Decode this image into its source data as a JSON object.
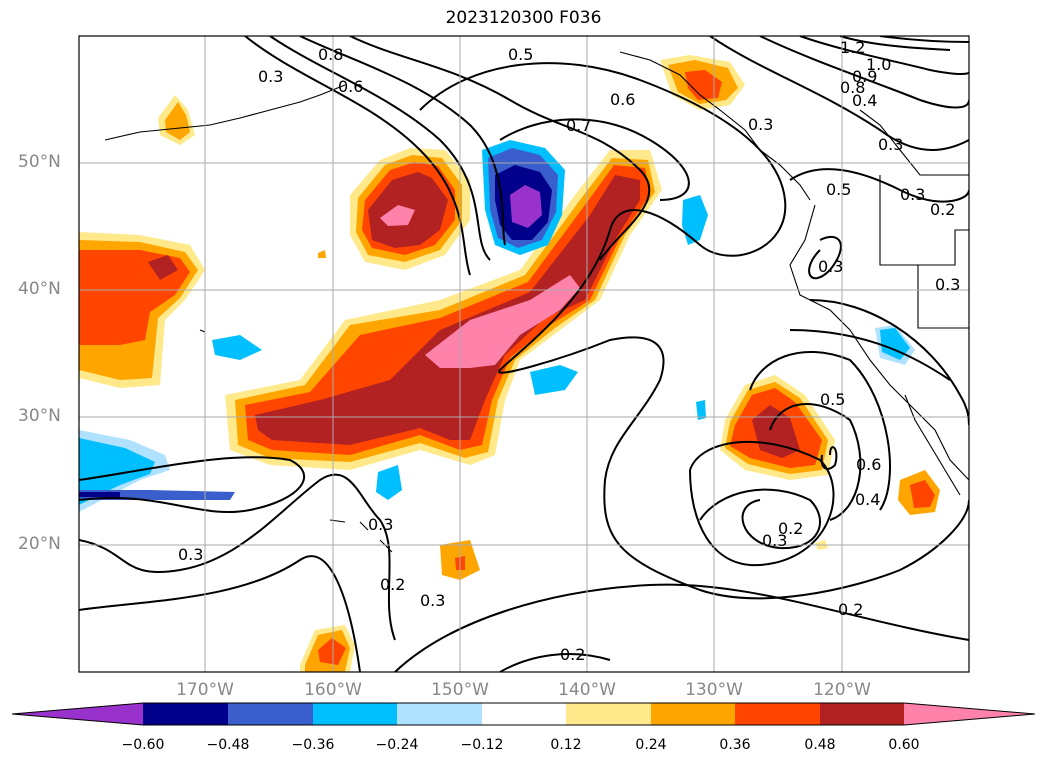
{
  "title": "2023120300 F036",
  "lat_labels": [
    "50°N",
    "40°N",
    "30°N",
    "20°N"
  ],
  "lon_labels": [
    "170°W",
    "160°W",
    "150°W",
    "140°W",
    "130°W",
    "120°W"
  ],
  "colorbar": {
    "ticks": [
      "−0.60",
      "−0.48",
      "−0.36",
      "−0.24",
      "−0.12",
      "0.12",
      "0.24",
      "0.36",
      "0.48",
      "0.60"
    ],
    "colors": [
      "#9932cc",
      "#00008b",
      "#3a5fcd",
      "#00bfff",
      "#b0e2ff",
      "#ffffff",
      "#ffe98a",
      "#ffa500",
      "#ff4500",
      "#b22222",
      "#ff82ab"
    ]
  },
  "contour_labels": [
    "0.5",
    "0.6",
    "0.7",
    "1.2",
    "1.0",
    "0.9",
    "0.8",
    "0.4",
    "0.3",
    "0.3",
    "0.2",
    "0.3",
    "0.5",
    "0.6",
    "0.4",
    "0.2",
    "0.3",
    "0.3",
    "0.2",
    "0.3",
    "0.2",
    "0.2",
    "0.3",
    "0.8",
    "0.6",
    "0.3",
    "0.3",
    "0.3",
    "0.5"
  ]
}
